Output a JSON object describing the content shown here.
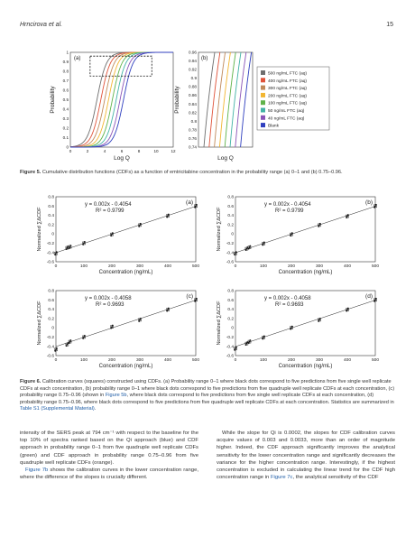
{
  "header": {
    "author": "Hrncirova et al.",
    "page_number": "15"
  },
  "figure5": {
    "caption_label": "Figure 5.",
    "caption_text": "Cumulative distribution functions (CDFs) as a function of emtricitabine concentration in the probability range (a) 0–1 and (b) 0.75–0.96.",
    "colors": [
      "#6e6e6e",
      "#e0533a",
      "#c08a5b",
      "#f2b632",
      "#5fb34a",
      "#43b3a6",
      "#8a55b8",
      "#2f3fbf"
    ],
    "chart_data": [
      {
        "type": "line",
        "panel": "(a)",
        "xlabel": "Log Q",
        "ylabel": "Probability",
        "xlim": [
          0,
          12
        ],
        "ylim": [
          0,
          1
        ],
        "x_ticks": [
          "0",
          "2",
          "4",
          "6",
          "8",
          "10",
          "12"
        ],
        "y_ticks": [
          "0",
          "0.1",
          "0.2",
          "0.3",
          "0.4",
          "0.5",
          "0.6",
          "0.7",
          "0.8",
          "0.9",
          "1"
        ],
        "series_x50": [
          3.1,
          3.55,
          4.0,
          4.45,
          4.9,
          5.35,
          5.8,
          6.2
        ]
      },
      {
        "type": "line",
        "panel": "(b)",
        "xlabel": "Log Q",
        "ylabel": "Probability",
        "ylim": [
          0.74,
          0.96
        ],
        "y_ticks": [
          "0.74",
          "0.76",
          "0.78",
          "0.8",
          "0.82",
          "0.84",
          "0.86",
          "0.88",
          "0.9",
          "0.92",
          "0.94",
          "0.96"
        ],
        "legend_position": "right",
        "legend": [
          "500 ng/mL FTC (aq)",
          "400 ng/mL FTC (aq)",
          "300 ng/mL FTC (aq)",
          "200 ng/mL FTC (aq)",
          "100 ng/mL FTC (aq)",
          "50 ng/mL FTC (aq)",
          "40 ng/mL FTC (aq)",
          "Blank"
        ]
      }
    ]
  },
  "figure6": {
    "caption_label": "Figure 6.",
    "caption_text": "Calibration curves (squares) constructed using CDFs. (a) Probability range 0–1 where black dots correspond to five predictions from five single well replicate CDFs at each concentration, (b) probability range 0–1 where black dots correspond to five predictions from five quadruple well replicate CDFs at each concentration, (c) probability range 0.75–0.96 (shown in ",
    "caption_link1": "Figure 5b",
    "caption_text2": ", where black dots correspond to five predictions from five single well replicate CDFs at each concentration, (d) probability range 0.75–0.96, where black dots correspond to five predictions from five quadruple well replicate CDFs at each concentration. Statistics are summarized in ",
    "caption_link2": "Table S1 (Supplemental Material)",
    "caption_text3": ".",
    "chart_data": [
      {
        "type": "scatter",
        "panel": "(a)",
        "equation": "y = 0.002x - 0.4054",
        "r2": "R² = 0.9799",
        "xlabel": "Concentration (ng/mL)",
        "ylabel": "Normalized ∑ΔCDF",
        "xlim": [
          0,
          500
        ],
        "ylim": [
          -0.6,
          0.8
        ],
        "x": [
          0,
          40,
          50,
          100,
          200,
          300,
          400,
          500
        ],
        "y": [
          -0.42,
          -0.3,
          -0.28,
          -0.2,
          -0.01,
          0.19,
          0.39,
          0.6
        ]
      },
      {
        "type": "scatter",
        "panel": "(b)",
        "equation": "y = 0.002x - 0.4054",
        "r2": "R² = 0.9799",
        "xlabel": "Concentration (ng/mL)",
        "ylabel": "Normalized ∑ΔCDF",
        "xlim": [
          0,
          500
        ],
        "ylim": [
          -0.6,
          0.8
        ],
        "x": [
          0,
          40,
          50,
          100,
          200,
          300,
          400,
          500
        ],
        "y": [
          -0.42,
          -0.32,
          -0.29,
          -0.21,
          -0.01,
          0.19,
          0.38,
          0.6
        ]
      },
      {
        "type": "scatter",
        "panel": "(c)",
        "equation": "y = 0.002x - 0.4058",
        "r2": "R² = 0.9693",
        "xlabel": "Concentration (ng/mL)",
        "ylabel": "Normalized ∑ΔCDF",
        "xlim": [
          0,
          500
        ],
        "ylim": [
          -0.6,
          0.8
        ],
        "x": [
          0,
          40,
          50,
          100,
          200,
          300,
          400,
          500
        ],
        "y": [
          -0.47,
          -0.36,
          -0.3,
          -0.2,
          0.02,
          0.17,
          0.39,
          0.6
        ]
      },
      {
        "type": "scatter",
        "panel": "(d)",
        "equation": "y = 0.002x - 0.4058",
        "r2": "R² = 0.9693",
        "xlabel": "Concentration (ng/mL)",
        "ylabel": "Normalized ∑ΔCDF",
        "xlim": [
          0,
          500
        ],
        "ylim": [
          -0.6,
          0.8
        ],
        "x": [
          0,
          40,
          50,
          100,
          200,
          300,
          400,
          500
        ],
        "y": [
          -0.45,
          -0.34,
          -0.3,
          -0.21,
          0.0,
          0.17,
          0.39,
          0.6
        ]
      }
    ],
    "x_ticks": [
      "0",
      "100",
      "200",
      "300",
      "400",
      "500"
    ],
    "y_ticks": [
      "-0.6",
      "-0.4",
      "-0.2",
      "0",
      "0.2",
      "0.4",
      "0.6",
      "0.8"
    ]
  },
  "body": {
    "left_p1": "intensity of the SERS peak at 794 cm⁻¹ with respect to the baseline for the top 10% of spectra ranked based on the Qi approach (blue) and CDF approach in probability range 0–1 from five quadruple well replicate CDFs (green) and CDF approach in probability range 0.75–0.96 from five quadruple well replicate CDFs (orange).",
    "left_p2_link": "Figure 7b",
    "left_p2": " shows the calibration curves in the lower concentration range, where the difference of the slopes is crucially different.",
    "right_p1a": "While the slope for Qi is 0.0002, the slopes for CDF calibration curves acquire values of 0.003 and 0.0033, more than an order of magnitude higher. Indeed, the CDF approach significantly improves the analytical sensitivity for the lower concentration range and significantly decreases the variance for the higher concentration range. Interestingly, if the highest concentration is excluded in calculating the linear trend for the CDF high concentration range in ",
    "right_p1_link": "Figure 7c",
    "right_p1b": ", the analytical sensitivity of the CDF"
  }
}
